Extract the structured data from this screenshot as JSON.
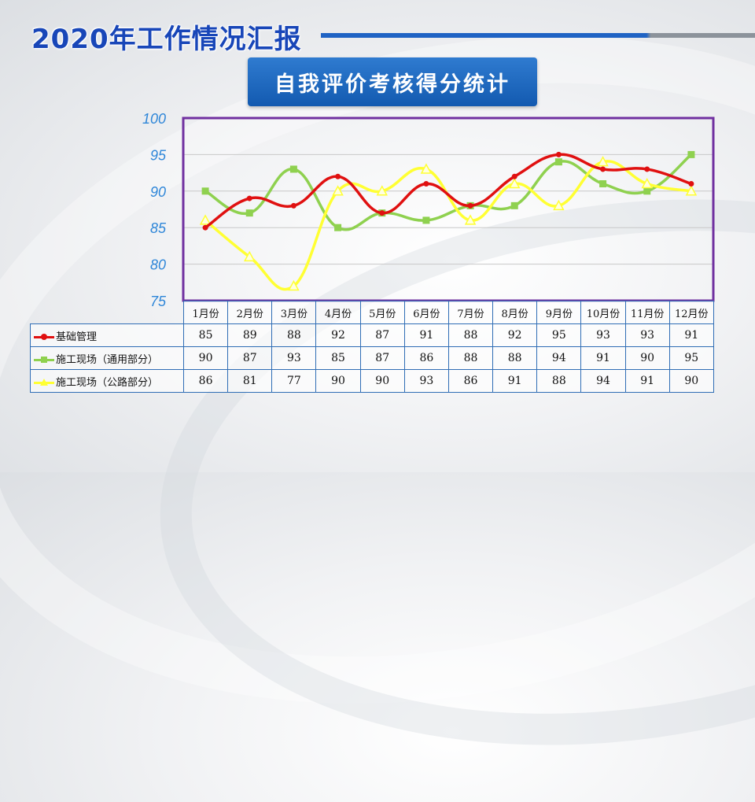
{
  "header": {
    "title": "2020年工作情况汇报",
    "subtitle": "自我评价考核得分统计"
  },
  "chart_data": {
    "type": "line",
    "categories": [
      "1月份",
      "2月份",
      "3月份",
      "4月份",
      "5月份",
      "6月份",
      "7月份",
      "8月份",
      "9月份",
      "10月份",
      "11月份",
      "12月份"
    ],
    "ylim": [
      75,
      100
    ],
    "yticks": [
      "75",
      "80",
      "85",
      "90",
      "95",
      "100"
    ],
    "grid": true,
    "legend": "table-below",
    "series": [
      {
        "name": "基础管理",
        "color": "#e01010",
        "marker": "circle",
        "values": [
          85,
          89,
          88,
          92,
          87,
          91,
          88,
          92,
          95,
          93,
          93,
          91
        ]
      },
      {
        "name": "施工现场（通用部分）",
        "color": "#8fd14f",
        "marker": "square",
        "values": [
          90,
          87,
          93,
          85,
          87,
          86,
          88,
          88,
          94,
          91,
          90,
          95
        ]
      },
      {
        "name": "施工现场（公路部分）",
        "color": "#ffff33",
        "marker": "triangle",
        "values": [
          86,
          81,
          77,
          90,
          90,
          93,
          86,
          91,
          88,
          94,
          91,
          90
        ]
      }
    ]
  }
}
